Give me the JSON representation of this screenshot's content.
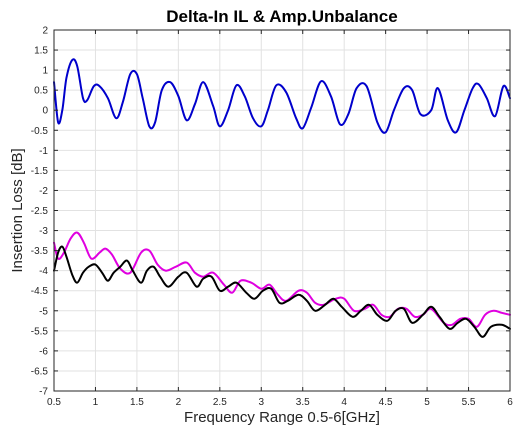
{
  "chart_data": {
    "type": "line",
    "title": "Delta-In IL & Amp.Unbalance",
    "xlabel": "Frequency Range 0.5-6[GHz]",
    "ylabel": "Insertion Loss [dB]",
    "xlim": [
      0.5,
      6
    ],
    "ylim": [
      -7,
      2
    ],
    "xticks": [
      0.5,
      1,
      1.5,
      2,
      2.5,
      3,
      3.5,
      4,
      4.5,
      5,
      5.5,
      6
    ],
    "xtick_labels": [
      "0.5",
      "1",
      "1.5",
      "2",
      "2.5",
      "3",
      "3.5",
      "4",
      "4.5",
      "5",
      "5.5",
      "6"
    ],
    "yticks": [
      2,
      1.5,
      1,
      0.5,
      0,
      -0.5,
      -1,
      -1.5,
      -2,
      -2.5,
      -3,
      -3.5,
      -4,
      -4.5,
      -5,
      -5.5,
      -6,
      -6.5,
      -7
    ],
    "ytick_labels": [
      "2",
      "1.5",
      "1",
      "0.5",
      "0",
      "-0.5",
      "-1",
      "-1.5",
      "-2",
      "-2.5",
      "-3",
      "-3.5",
      "-4",
      "-4.5",
      "-5",
      "-5.5",
      "-6",
      "-6.5",
      "-7"
    ],
    "grid": true,
    "series": [
      {
        "color": "#0000cc",
        "x": [
          0.5,
          0.55,
          0.6,
          0.65,
          0.72,
          0.78,
          0.85,
          0.9,
          0.98,
          1.05,
          1.15,
          1.25,
          1.33,
          1.42,
          1.5,
          1.57,
          1.65,
          1.72,
          1.8,
          1.9,
          2.0,
          2.1,
          2.2,
          2.3,
          2.42,
          2.5,
          2.6,
          2.7,
          2.8,
          2.9,
          3.0,
          3.08,
          3.18,
          3.3,
          3.42,
          3.5,
          3.6,
          3.72,
          3.84,
          3.95,
          4.05,
          4.15,
          4.27,
          4.4,
          4.5,
          4.6,
          4.72,
          4.82,
          4.92,
          5.05,
          5.13,
          5.25,
          5.35,
          5.45,
          5.55,
          5.62,
          5.72,
          5.82,
          5.92,
          6.0
        ],
        "y": [
          0.7,
          -0.3,
          0.0,
          0.8,
          1.25,
          1.1,
          0.3,
          0.25,
          0.6,
          0.6,
          0.3,
          -0.2,
          0.2,
          0.9,
          0.9,
          0.3,
          -0.4,
          -0.3,
          0.5,
          0.7,
          0.35,
          -0.25,
          0.15,
          0.7,
          0.1,
          -0.4,
          0.0,
          0.62,
          0.35,
          -0.2,
          -0.4,
          0.0,
          0.62,
          0.45,
          -0.2,
          -0.45,
          0.05,
          0.72,
          0.35,
          -0.35,
          -0.1,
          0.55,
          0.6,
          -0.3,
          -0.55,
          0.0,
          0.55,
          0.5,
          -0.1,
          0.0,
          0.55,
          -0.25,
          -0.55,
          0.0,
          0.55,
          0.65,
          0.3,
          -0.15,
          0.6,
          0.3
        ]
      },
      {
        "color": "#e000e0",
        "x": [
          0.5,
          0.55,
          0.62,
          0.7,
          0.78,
          0.86,
          0.95,
          1.05,
          1.12,
          1.2,
          1.3,
          1.42,
          1.55,
          1.65,
          1.75,
          1.85,
          1.97,
          2.1,
          2.2,
          2.3,
          2.42,
          2.55,
          2.65,
          2.75,
          2.88,
          3.0,
          3.1,
          3.2,
          3.3,
          3.45,
          3.55,
          3.65,
          3.75,
          3.9,
          4.0,
          4.12,
          4.25,
          4.35,
          4.45,
          4.55,
          4.65,
          4.75,
          4.85,
          4.95,
          5.05,
          5.2,
          5.3,
          5.4,
          5.5,
          5.6,
          5.7,
          5.8,
          5.9,
          6.0
        ],
        "y": [
          -3.3,
          -3.7,
          -3.55,
          -3.2,
          -3.05,
          -3.3,
          -3.7,
          -3.55,
          -3.45,
          -3.6,
          -3.95,
          -4.05,
          -3.55,
          -3.5,
          -3.85,
          -4.0,
          -3.9,
          -3.8,
          -4.05,
          -4.15,
          -4.05,
          -4.35,
          -4.55,
          -4.25,
          -4.3,
          -4.45,
          -4.35,
          -4.6,
          -4.75,
          -4.5,
          -4.55,
          -4.8,
          -4.85,
          -4.7,
          -4.7,
          -5.0,
          -4.95,
          -4.85,
          -5.1,
          -5.15,
          -4.95,
          -4.95,
          -5.15,
          -5.1,
          -4.95,
          -5.3,
          -5.35,
          -5.2,
          -5.2,
          -5.4,
          -5.1,
          -5.0,
          -5.05,
          -5.1
        ]
      },
      {
        "color": "#000000",
        "x": [
          0.5,
          0.55,
          0.6,
          0.65,
          0.72,
          0.78,
          0.85,
          0.92,
          1.0,
          1.08,
          1.15,
          1.22,
          1.3,
          1.38,
          1.45,
          1.55,
          1.62,
          1.7,
          1.78,
          1.88,
          2.0,
          2.1,
          2.22,
          2.3,
          2.4,
          2.5,
          2.6,
          2.7,
          2.82,
          2.92,
          3.02,
          3.12,
          3.22,
          3.32,
          3.45,
          3.55,
          3.65,
          3.77,
          3.87,
          3.97,
          4.1,
          4.2,
          4.3,
          4.4,
          4.52,
          4.62,
          4.72,
          4.82,
          4.95,
          5.05,
          5.15,
          5.27,
          5.37,
          5.47,
          5.57,
          5.67,
          5.77,
          5.9,
          6.0
        ],
        "y": [
          -4.0,
          -3.55,
          -3.4,
          -3.65,
          -4.1,
          -4.3,
          -4.05,
          -3.9,
          -3.85,
          -4.05,
          -4.25,
          -4.05,
          -3.9,
          -3.75,
          -4.0,
          -4.3,
          -4.0,
          -3.9,
          -4.15,
          -4.4,
          -4.15,
          -4.05,
          -4.4,
          -4.2,
          -4.15,
          -4.5,
          -4.4,
          -4.3,
          -4.55,
          -4.7,
          -4.5,
          -4.45,
          -4.8,
          -4.75,
          -4.6,
          -4.75,
          -5.0,
          -4.85,
          -4.7,
          -4.9,
          -5.15,
          -5.0,
          -4.85,
          -5.1,
          -5.25,
          -5.0,
          -4.95,
          -5.3,
          -5.1,
          -4.9,
          -5.15,
          -5.45,
          -5.3,
          -5.2,
          -5.4,
          -5.65,
          -5.4,
          -5.35,
          -5.45
        ]
      }
    ]
  }
}
